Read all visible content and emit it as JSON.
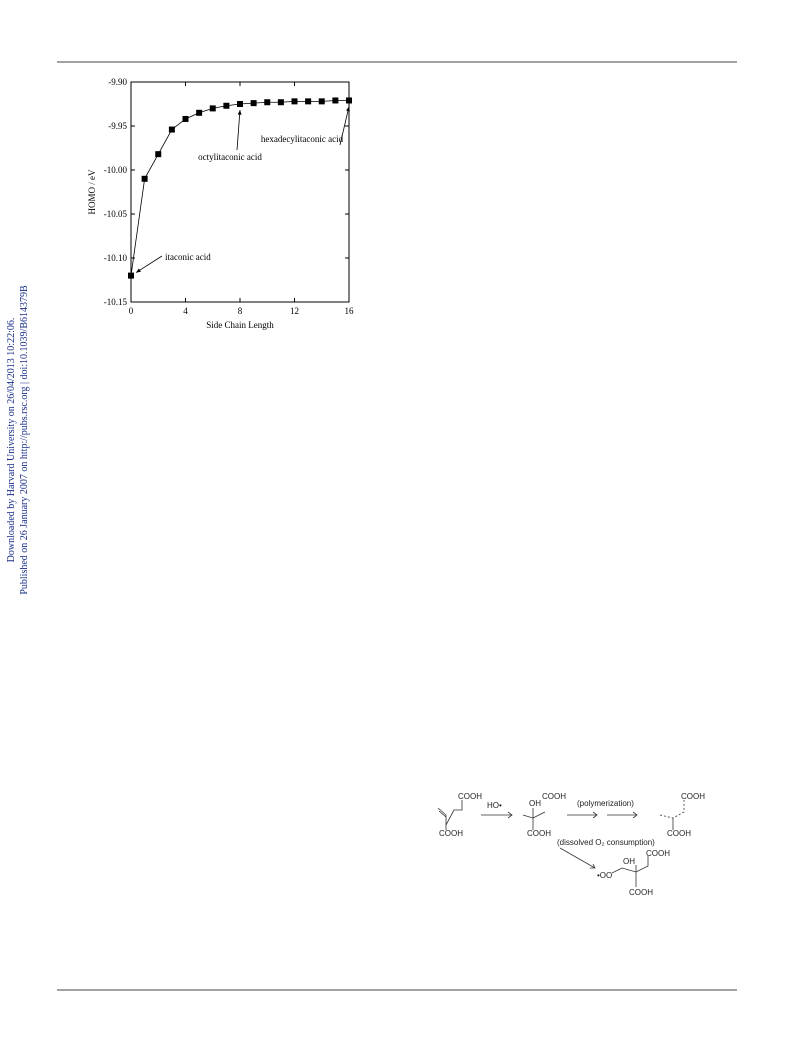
{
  "sidebar": {
    "lines": [
      "Downloaded by Harvard University on 26/04/2013 10:22:06.",
      "Published on 26 January 2007 on http://pubs.rsc.org | doi:10.1039/B614379B"
    ]
  },
  "chart_data": {
    "type": "line",
    "x_label": "Side Chain Length",
    "y_label": "HOMO / eV",
    "x": [
      0,
      1,
      2,
      3,
      4,
      5,
      6,
      7,
      8,
      9,
      10,
      11,
      12,
      13,
      14,
      15,
      16
    ],
    "series": [
      {
        "name": "HOMO",
        "color": "#000000",
        "values": [
          -10.12,
          -10.01,
          -9.982,
          -9.954,
          -9.942,
          -9.935,
          -9.93,
          -9.927,
          -9.925,
          -9.924,
          -9.923,
          -9.923,
          -9.922,
          -9.922,
          -9.922,
          -9.921,
          -9.921
        ]
      }
    ],
    "xlim": [
      0,
      16
    ],
    "xticks": [
      0,
      4,
      8,
      12,
      16
    ],
    "ylim": [
      -10.15,
      -9.9
    ],
    "yticks": [
      {
        "value": -10.15,
        "label": "-10.15"
      },
      {
        "value": -10.1,
        "label": "-10.10"
      },
      {
        "value": -10.05,
        "label": "-10.05"
      },
      {
        "value": -10,
        "label": "-10.00"
      },
      {
        "value": -9.95,
        "label": "-9.95"
      },
      {
        "value": -9.9,
        "label": "-9.90"
      }
    ],
    "annotations": [
      "itaconic acid",
      "octylitaconic acid",
      "hexadecylitaconic acid"
    ]
  },
  "scheme": {
    "labels": [
      "COOH",
      "COOH",
      "HO•",
      "OH",
      "COOH",
      "COOH",
      "(polymerization)",
      "COOH",
      "COOH",
      "(dissolved O₂ consumption)",
      "COOH",
      "OH",
      "•OO",
      "COOH"
    ]
  }
}
